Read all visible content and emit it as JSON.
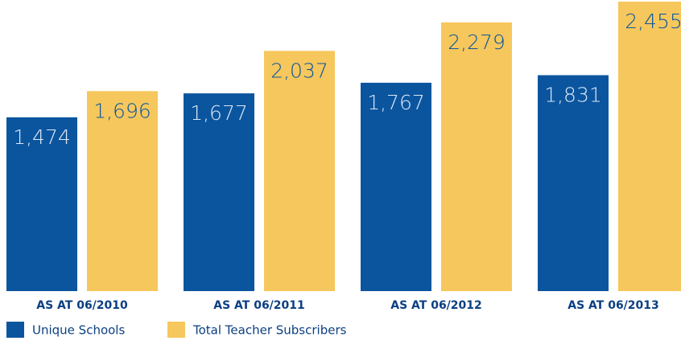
{
  "chart_data": {
    "type": "bar",
    "categories": [
      "AS AT 06/2010",
      "AS AT 06/2011",
      "AS AT 06/2012",
      "AS AT 06/2013"
    ],
    "series": [
      {
        "name": "Unique Schools",
        "color": "#0b559e",
        "values": [
          1474,
          1677,
          1767,
          1831
        ],
        "value_labels": [
          "1,474",
          "1,677",
          "1,767",
          "1,831"
        ]
      },
      {
        "name": "Total Teacher Subscribers",
        "color": "#f6c75c",
        "values": [
          1696,
          2037,
          2279,
          2455
        ],
        "value_labels": [
          "1,696",
          "2,037",
          "2,279",
          "2,455"
        ]
      }
    ],
    "legend": "bottom-left"
  }
}
